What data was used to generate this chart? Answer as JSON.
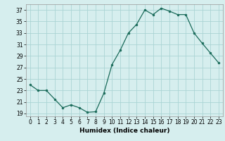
{
  "x": [
    0,
    1,
    2,
    3,
    4,
    5,
    6,
    7,
    8,
    9,
    10,
    11,
    12,
    13,
    14,
    15,
    16,
    17,
    18,
    19,
    20,
    21,
    22,
    23
  ],
  "y": [
    24,
    23,
    23,
    21.5,
    20,
    20.5,
    20,
    19.2,
    19.3,
    22.5,
    27.5,
    30,
    33,
    34.5,
    37,
    36.2,
    37.3,
    36.8,
    36.2,
    36.2,
    33,
    31.2,
    29.5,
    27.8
  ],
  "line_color": "#1a6b5a",
  "marker_color": "#1a6b5a",
  "bg_color": "#d6eeee",
  "grid_color": "#aad4d4",
  "xlabel": "Humidex (Indice chaleur)",
  "xlim": [
    -0.5,
    23.5
  ],
  "ylim": [
    18.5,
    38
  ],
  "yticks": [
    19,
    21,
    23,
    25,
    27,
    29,
    31,
    33,
    35,
    37
  ],
  "xticks": [
    0,
    1,
    2,
    3,
    4,
    5,
    6,
    7,
    8,
    9,
    10,
    11,
    12,
    13,
    14,
    15,
    16,
    17,
    18,
    19,
    20,
    21,
    22,
    23
  ],
  "tick_fontsize": 5.5,
  "xlabel_fontsize": 6.5
}
